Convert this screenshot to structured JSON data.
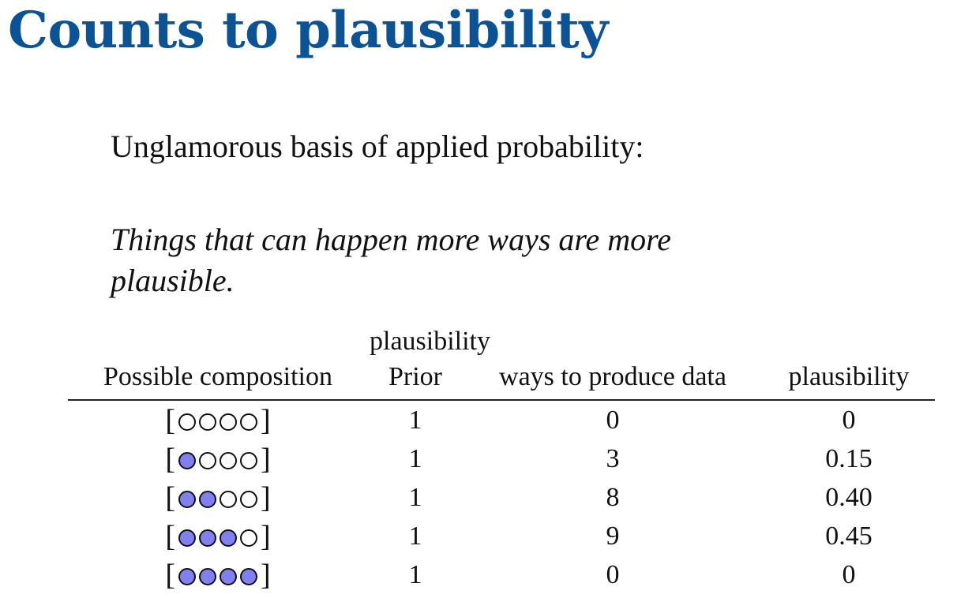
{
  "title": "Counts to plausibility",
  "intro": "Unglamorous basis of applied probability:",
  "maxim": "Things that can happen more ways are more plausible.",
  "table": {
    "group_header": "plausibility",
    "headers": [
      "Possible composition",
      "Prior",
      "ways to produce data",
      "plausibility"
    ],
    "rows": [
      {
        "composition": [
          "white",
          "white",
          "white",
          "white"
        ],
        "prior": "1",
        "ways": "0",
        "plausibility": "0"
      },
      {
        "composition": [
          "blue",
          "white",
          "white",
          "white"
        ],
        "prior": "1",
        "ways": "3",
        "plausibility": "0.15"
      },
      {
        "composition": [
          "blue",
          "blue",
          "white",
          "white"
        ],
        "prior": "1",
        "ways": "8",
        "plausibility": "0.40"
      },
      {
        "composition": [
          "blue",
          "blue",
          "blue",
          "white"
        ],
        "prior": "1",
        "ways": "9",
        "plausibility": "0.45"
      },
      {
        "composition": [
          "blue",
          "blue",
          "blue",
          "blue"
        ],
        "prior": "1",
        "ways": "0",
        "plausibility": "0"
      }
    ]
  },
  "colors": {
    "title": "#0b5394",
    "blue_marble": "#8080f0",
    "white_marble": "#ffffff"
  }
}
